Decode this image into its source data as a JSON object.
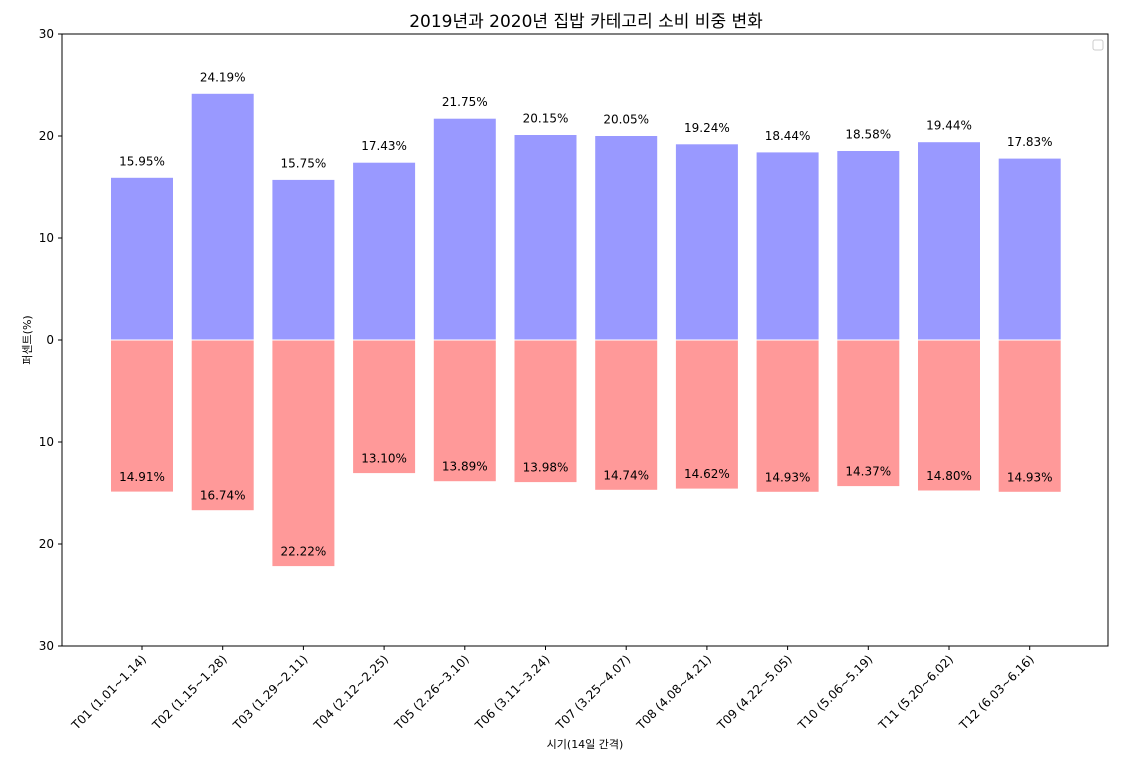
{
  "chart_data": {
    "type": "bar",
    "title": "2019년과 2020년 집밥 카테고리 소비 비중 변화",
    "xlabel": "시기(14일 간격)",
    "ylabel": "퍼센트(%)",
    "ylim": [
      -30,
      30
    ],
    "yticks": [
      30,
      20,
      10,
      0,
      10,
      20,
      30
    ],
    "categories": [
      "T01 (1.01~1.14)",
      "T02 (1.15~1.28)",
      "T03 (1.29~2.11)",
      "T04 (2.12~2.25)",
      "T05 (2.26~3.10)",
      "T06 (3.11~3.24)",
      "T07 (3.25~4.07)",
      "T08 (4.08~4.21)",
      "T09 (4.22~5.05)",
      "T10 (5.06~5.19)",
      "T11 (5.20~6.02)",
      "T12 (6.03~6.16)"
    ],
    "series": [
      {
        "values": [
          15.95,
          24.19,
          15.75,
          17.43,
          21.75,
          20.15,
          20.05,
          19.24,
          18.44,
          18.58,
          19.44,
          17.83
        ],
        "labels": [
          "15.95%",
          "24.19%",
          "15.75%",
          "17.43%",
          "21.75%",
          "20.15%",
          "20.05%",
          "19.24%",
          "18.44%",
          "18.58%",
          "19.44%",
          "17.83%"
        ],
        "color": "#9999ff",
        "direction": "up"
      },
      {
        "values": [
          14.91,
          16.74,
          22.22,
          13.1,
          13.89,
          13.98,
          14.74,
          14.62,
          14.93,
          14.37,
          14.8,
          14.93
        ],
        "labels": [
          "14.91%",
          "16.74%",
          "22.22%",
          "13.10%",
          "13.89%",
          "13.98%",
          "14.74%",
          "14.62%",
          "14.93%",
          "14.37%",
          "14.80%",
          "14.93%"
        ],
        "color": "#ff9999",
        "direction": "down"
      }
    ],
    "grid": false,
    "legend": "top-right (empty)"
  }
}
